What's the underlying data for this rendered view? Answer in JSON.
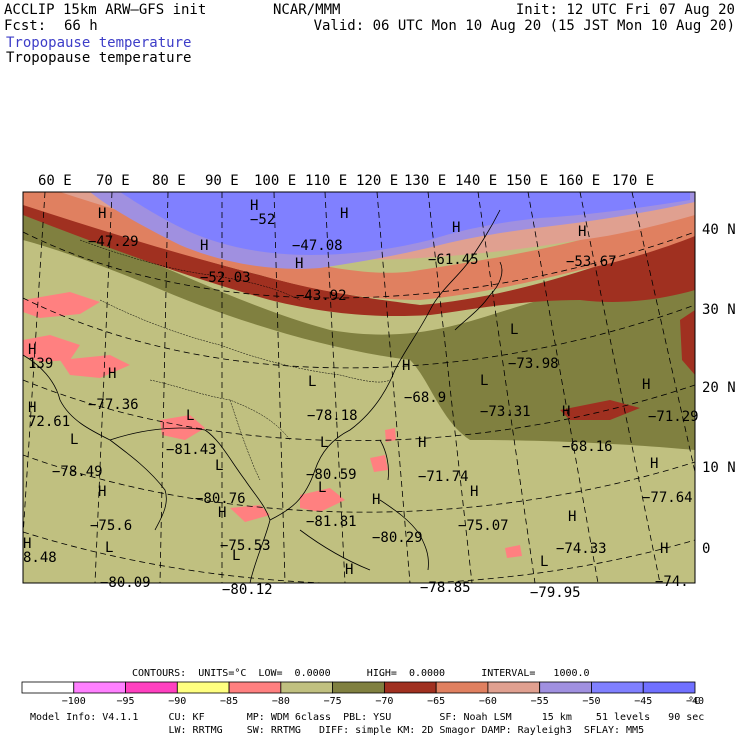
{
  "header": {
    "model": "ACCLIP 15km ARW—GFS init",
    "fcst_label": "Fcst:",
    "fcst_value": "66 h",
    "center": "NCAR/MMM",
    "init": "Init: 12 UTC Fri 07 Aug 20",
    "valid": "Valid: 06 UTC Mon 10 Aug 20 (15 JST Mon 10 Aug 20)",
    "field_1": "Tropopause temperature",
    "field_2": "Tropopause temperature"
  },
  "map": {
    "lon_labels": [
      "60 E",
      "70 E",
      "80 E",
      "90 E",
      "100 E",
      "110 E",
      "120 E",
      "130 E",
      "140 E",
      "150 E",
      "160 E",
      "170 E"
    ],
    "lat_labels": [
      "40 N",
      "30 N",
      "20 N",
      "10 N",
      "0"
    ],
    "highs_lows": [
      {
        "type": "H",
        "value": "−47.29"
      },
      {
        "type": "H",
        "value": "−52"
      },
      {
        "type": "H",
        "value": "−47.08"
      },
      {
        "type": "H",
        "value": "−52.03"
      },
      {
        "type": "H",
        "value": "−43.92"
      },
      {
        "type": "H",
        "value": "−61.45"
      },
      {
        "type": "H",
        "value": "−53.67"
      },
      {
        "type": "L",
        "value": "−73.98"
      },
      {
        "type": "H",
        "value": "139"
      },
      {
        "type": "H",
        "value": "−77.36"
      },
      {
        "type": "L",
        "value": "−78.18"
      },
      {
        "type": "H",
        "value": "−68.9"
      },
      {
        "type": "L",
        "value": "−73.31"
      },
      {
        "type": "H",
        "value": "−71.29"
      },
      {
        "type": "H",
        "value": "72.61"
      },
      {
        "type": "L",
        "value": "−81.43"
      },
      {
        "type": "H",
        "value": "−68.16"
      },
      {
        "type": "L",
        "value": "−78.49"
      },
      {
        "type": "L",
        "value": "−80.59"
      },
      {
        "type": "H",
        "value": "−71.74"
      },
      {
        "type": "H",
        "value": "−77.64"
      },
      {
        "type": "L",
        "value": "−80.76"
      },
      {
        "type": "H",
        "value": "−75.6"
      },
      {
        "type": "L",
        "value": "−81.81"
      },
      {
        "type": "H",
        "value": "−75.07"
      },
      {
        "type": "H",
        "value": "−75.53"
      },
      {
        "type": "H",
        "value": "−80.29"
      },
      {
        "type": "H",
        "value": "−74.33"
      },
      {
        "type": "H",
        "value": "8.48"
      },
      {
        "type": "L",
        "value": "−80.09"
      },
      {
        "type": "H",
        "value": "−74."
      },
      {
        "type": "L",
        "value": "−80.12"
      },
      {
        "type": "H",
        "value": "−78.85"
      },
      {
        "type": "L",
        "value": "−79.95"
      }
    ]
  },
  "contour_info": "CONTOURS:  UNITS=°C  LOW=  0.0000      HIGH=  0.0000      INTERVAL=   1000.0",
  "colorbar": {
    "colors": [
      "#ffffff",
      "#ff80ff",
      "#ff40c0",
      "#ffff80",
      "#ff8080",
      "#c0c080",
      "#808040",
      "#a03020",
      "#e08060",
      "#e0a090",
      "#a090e0",
      "#8080ff",
      "#7070ff"
    ],
    "labels": [
      "−100",
      "−95",
      "−90",
      "−85",
      "−80",
      "−75",
      "−70",
      "−65",
      "−60",
      "−55",
      "−50",
      "−45",
      "−40"
    ],
    "unit": "°C"
  },
  "footer": {
    "line1": "Model Info: V4.1.1     CU: KF       MP: WDM 6class  PBL: YSU        SF: Noah LSM     15 km    51 levels   90 sec",
    "line2": "                       LW: RRTMG    SW: RRTMG   DIFF: simple KM: 2D Smagor DAMP: Rayleigh3  SFLAY: MM5"
  }
}
